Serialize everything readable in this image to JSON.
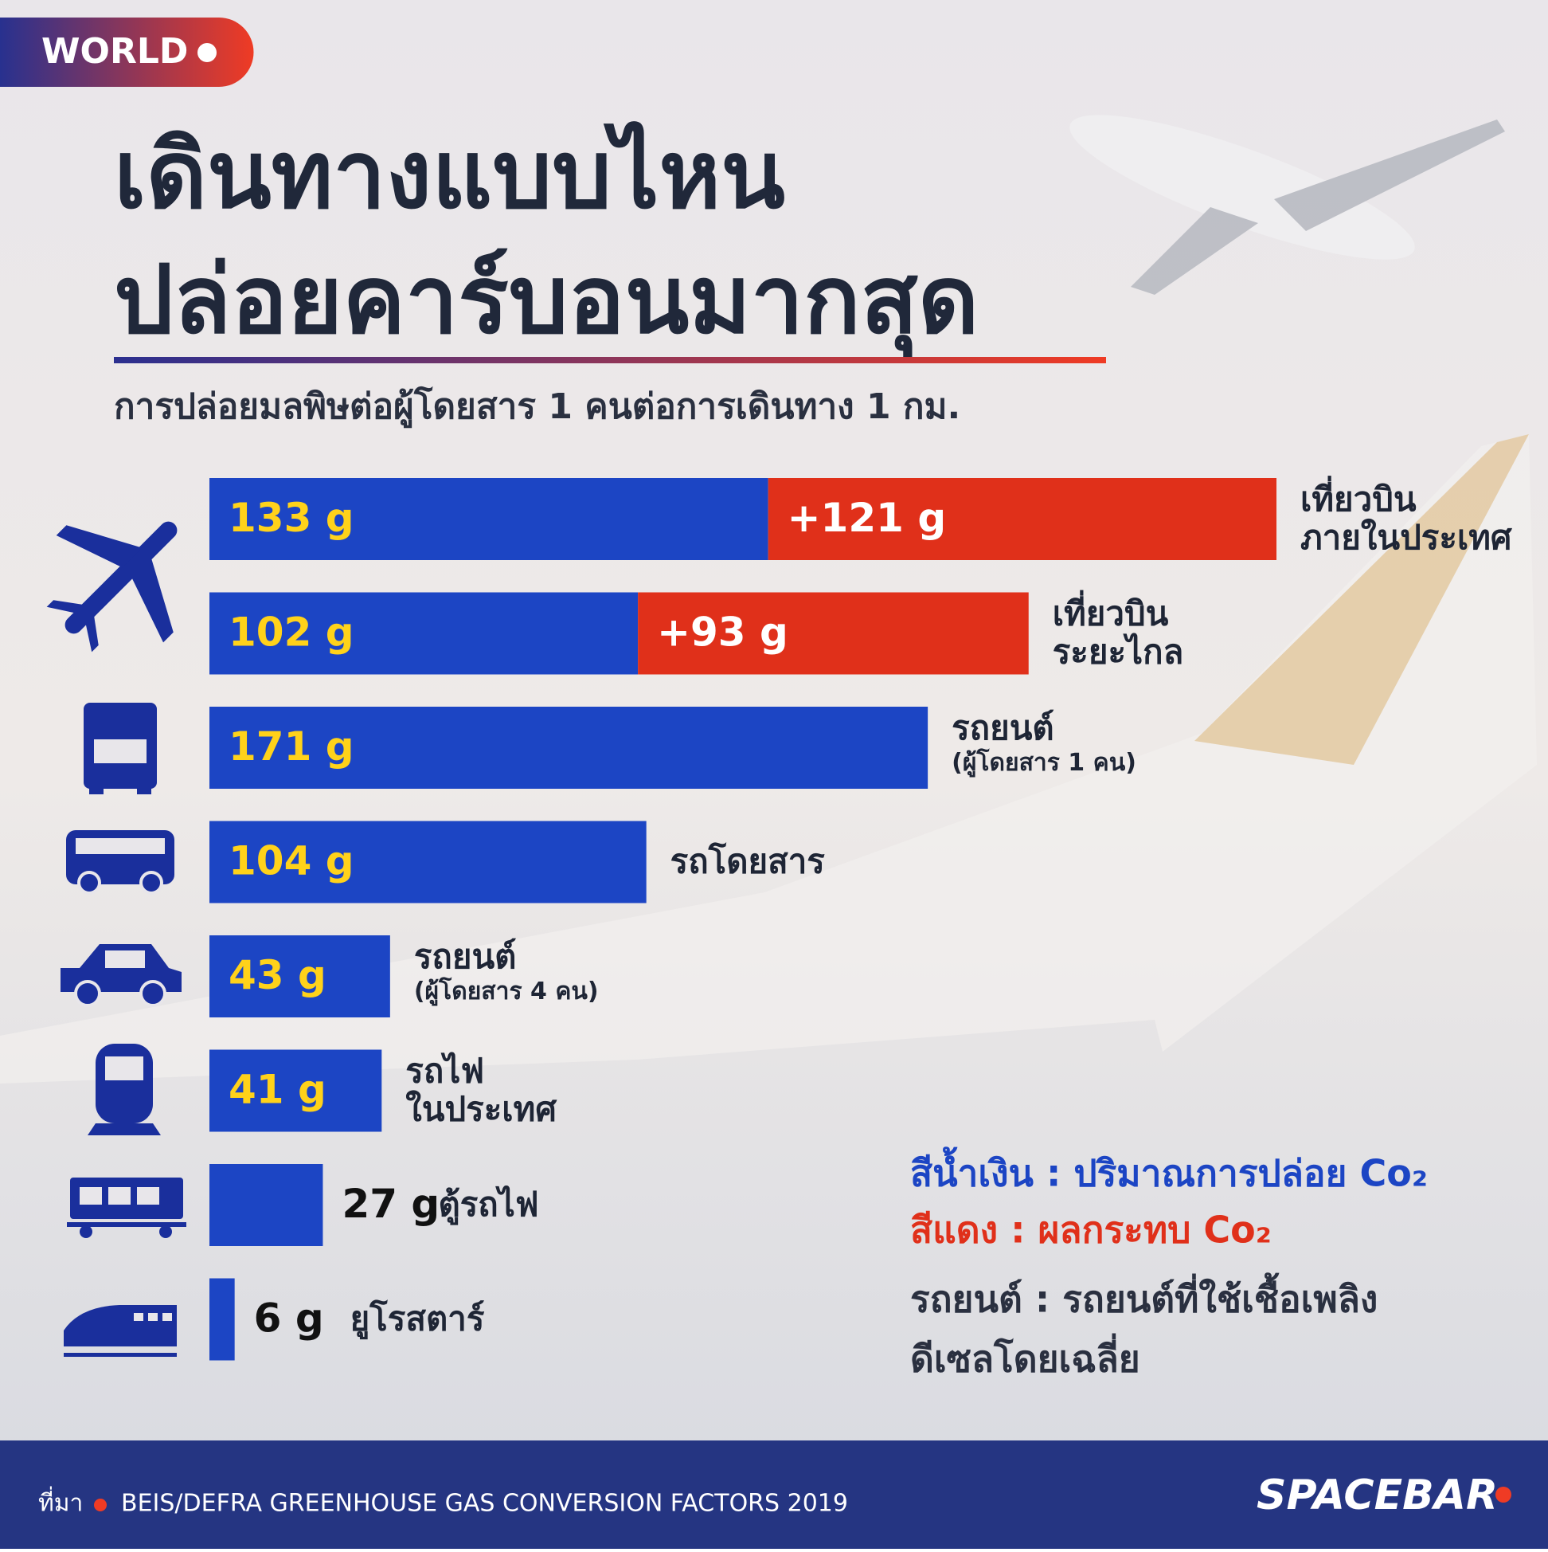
{
  "badge": "WORLD",
  "chart_data": {
    "type": "bar",
    "orientation": "horizontal",
    "stacked": true,
    "title": [
      "เดินทางแบบไหน",
      "ปล่อยคาร์บอนมากสุด"
    ],
    "subtitle": "การปล่อยมลพิษต่อผู้โดยสาร 1 คนต่อการเดินทาง 1 กม.",
    "categories": [
      [
        "เที่ยวบิน",
        "ภายในประเทศ"
      ],
      [
        "เที่ยวบิน",
        "ระยะไกล"
      ],
      [
        "รถยนต์"
      ],
      [
        "รถโดยสาร"
      ],
      [
        "รถยนต์"
      ],
      [
        "รถไฟ",
        "ในประเทศ"
      ],
      [
        "ตู้รถไฟ"
      ],
      [
        "ยูโรสตาร์"
      ]
    ],
    "category_notes": [
      null,
      null,
      "(ผู้โดยสาร 1 คน)",
      null,
      "(ผู้โดยสาร 4 คน)",
      null,
      null,
      null
    ],
    "series": [
      {
        "name": "สีน้ำเงิน : ปริมาณการปล่อย Co₂",
        "color": "#1c45c4",
        "values": [
          133,
          102,
          171,
          104,
          43,
          41,
          27,
          6
        ],
        "value_labels": [
          "133 g",
          "102 g",
          "171 g",
          "104 g",
          "43 g",
          "41 g",
          "27 g",
          "6 g"
        ]
      },
      {
        "name": "สีแดง : ผลกระทบ Co₂",
        "color": "#e0301a",
        "values": [
          121,
          93,
          null,
          null,
          null,
          null,
          null,
          null
        ],
        "value_labels": [
          "+121 g",
          "+93 g",
          null,
          null,
          null,
          null,
          null,
          null
        ]
      }
    ],
    "note": [
      "รถยนต์ : รถยนต์ที่ใช้เชื้อเพลิง",
      "ดีเซลโดยเฉลี่ย"
    ]
  },
  "footer": {
    "source_label": "ที่มา",
    "source": "BEIS/DEFRA GREENHOUSE GAS CONVERSION FACTORS 2019",
    "logo": "SPACEBAR"
  }
}
